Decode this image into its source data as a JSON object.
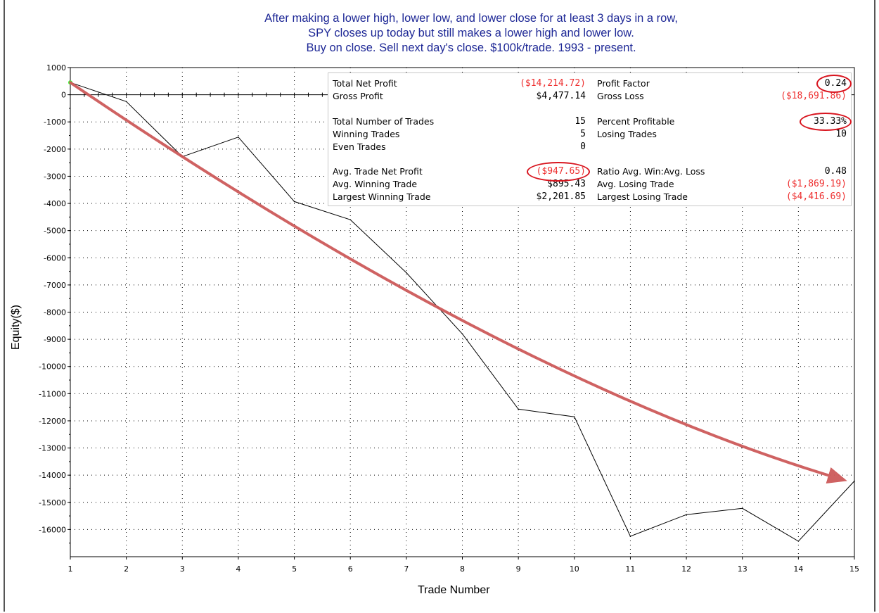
{
  "title_lines": [
    "After making a lower high, lower low, and lower close for at least 3 days in a row,",
    "SPY closes up today but still makes a lower high and lower low.",
    "Buy on close. Sell next day's close. $100k/trade. 1993 - present."
  ],
  "colors": {
    "title": "#1e2896",
    "equity_line": "#000000",
    "trend_arrow": "#cd5a5a",
    "negative_value": "#ee3030",
    "highlight_circle": "#d8141e",
    "start_marker": "#33ff33"
  },
  "stats": {
    "total_net_profit": {
      "label": "Total Net Profit",
      "value": "($14,214.72)"
    },
    "gross_profit": {
      "label": "Gross Profit",
      "value": "$4,477.14"
    },
    "total_trades": {
      "label": "Total Number of Trades",
      "value": "15"
    },
    "winning_trades": {
      "label": "Winning Trades",
      "value": "5"
    },
    "even_trades": {
      "label": "Even Trades",
      "value": "0"
    },
    "avg_trade": {
      "label": "Avg. Trade Net Profit",
      "value": "($947.65)"
    },
    "avg_winning": {
      "label": "Avg. Winning Trade",
      "value": "$895.43"
    },
    "largest_winning": {
      "label": "Largest Winning Trade",
      "value": "$2,201.85"
    },
    "profit_factor": {
      "label": "Profit Factor",
      "value": "0.24"
    },
    "gross_loss": {
      "label": "Gross Loss",
      "value": "($18,691.86)"
    },
    "percent_profitable": {
      "label": "Percent Profitable",
      "value": "33.33%"
    },
    "losing_trades": {
      "label": "Losing Trades",
      "value": "10"
    },
    "ratio_win_loss": {
      "label": "Ratio Avg. Win:Avg. Loss",
      "value": "0.48"
    },
    "avg_losing": {
      "label": "Avg. Losing Trade",
      "value": "($1,869.19)"
    },
    "largest_losing": {
      "label": "Largest Losing Trade",
      "value": "($4,416.69)"
    }
  },
  "chart_data": {
    "type": "line",
    "title": "After making a lower high, lower low, and lower close for at least 3 days in a row, SPY closes up today but still makes a lower high and lower low. Buy on close. Sell next day's close. $100k/trade. 1993 - present.",
    "xlabel": "Trade Number",
    "ylabel": "Equity($)",
    "xlim": [
      1,
      15
    ],
    "ylim": [
      -17000,
      1000
    ],
    "x_ticks": [
      1,
      2,
      3,
      4,
      5,
      6,
      7,
      8,
      9,
      10,
      11,
      12,
      13,
      14,
      15
    ],
    "y_ticks": [
      1000,
      0,
      -1000,
      -2000,
      -3000,
      -4000,
      -5000,
      -6000,
      -7000,
      -8000,
      -9000,
      -10000,
      -11000,
      -12000,
      -13000,
      -14000,
      -15000,
      -16000
    ],
    "grid": true,
    "series": [
      {
        "x": [
          1,
          2,
          3,
          4,
          5,
          6,
          7,
          8,
          9,
          10,
          11,
          12,
          13,
          14,
          15
        ],
        "values": [
          450,
          -250,
          -2280,
          -1560,
          -3930,
          -4600,
          -6550,
          -8800,
          -11570,
          -11850,
          -16250,
          -15450,
          -15220,
          -16430,
          -14215
        ]
      }
    ],
    "trend_arrow": {
      "from": [
        1,
        450
      ],
      "control": [
        8.8,
        -10500
      ],
      "to": [
        14.8,
        -14170
      ]
    }
  }
}
